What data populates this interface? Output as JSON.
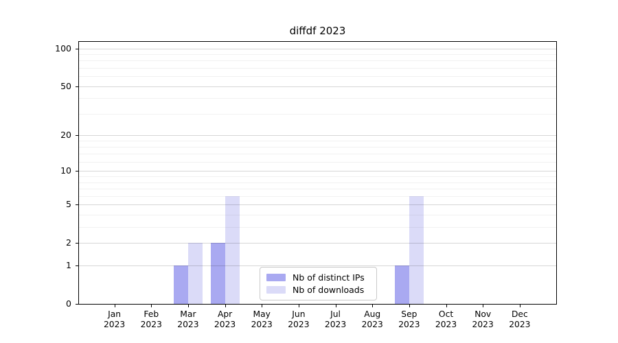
{
  "chart_data": {
    "type": "bar",
    "title": "diffdf 2023",
    "categories": [
      "Jan",
      "Feb",
      "Mar",
      "Apr",
      "May",
      "Jun",
      "Jul",
      "Aug",
      "Sep",
      "Oct",
      "Nov",
      "Dec"
    ],
    "year_label": "2023",
    "series": [
      {
        "name": "Nb of distinct IPs",
        "color": "#a9a9f1",
        "values": [
          0,
          0,
          1,
          2,
          0,
          0,
          0,
          0,
          1,
          0,
          0,
          0
        ]
      },
      {
        "name": "Nb of downloads",
        "color": "#dbdbf8",
        "values": [
          0,
          0,
          2,
          6,
          0,
          0,
          0,
          0,
          6,
          0,
          0,
          0
        ]
      }
    ],
    "y_ticks": [
      0,
      1,
      2,
      5,
      10,
      20,
      50,
      100
    ],
    "y_minor_gridlines": [
      3,
      4,
      6,
      7,
      8,
      9,
      12,
      14,
      16,
      18,
      30,
      40,
      60,
      70,
      80,
      90
    ],
    "scale": "log1p",
    "ylim": [
      0,
      100
    ],
    "grid": true,
    "legend_position": "bottom-center",
    "axis_color": "#000000",
    "background_color": "#ffffff"
  }
}
